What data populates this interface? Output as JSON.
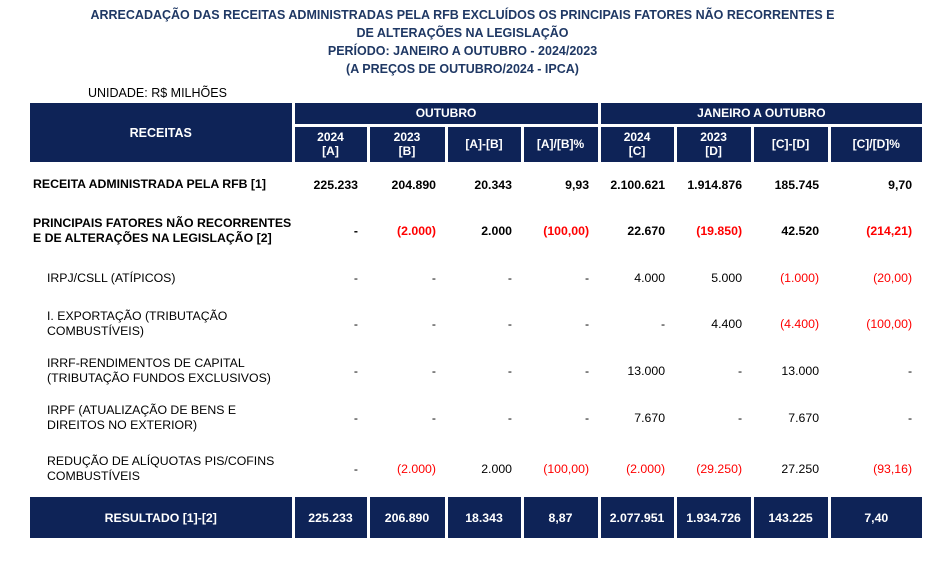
{
  "title": {
    "line1": "ARRECADAÇÃO DAS RECEITAS ADMINISTRADAS PELA RFB EXCLUÍDOS OS PRINCIPAIS FATORES NÃO RECORRENTES E",
    "line2": "DE ALTERAÇÕES NA LEGISLAÇÃO",
    "line3": "PERÍODO: JANEIRO A OUTUBRO - 2024/2023",
    "line4": "(A PREÇOS DE OUTUBRO/2024 - IPCA)"
  },
  "unit_label": "UNIDADE: R$ MILHÕES",
  "colors": {
    "band_navy": "#0E2357",
    "title_navy": "#1F3864",
    "negative_red": "#FF0000"
  },
  "table": {
    "header": {
      "receitas": "RECEITAS",
      "groups": [
        {
          "label": "OUTUBRO"
        },
        {
          "label": "JANEIRO A OUTUBRO"
        }
      ],
      "columns": [
        "2024\n[A]",
        "2023\n[B]",
        "[A]-[B]",
        "[A]/[B]%",
        "2024\n[C]",
        "2023\n[D]",
        "[C]-[D]",
        "[C]/[D]%"
      ]
    },
    "rows": [
      {
        "label": "RECEITA ADMINISTRADA PELA RFB [1]",
        "bold": true,
        "indent": false,
        "values": [
          "225.233",
          "204.890",
          "20.343",
          "9,93",
          "2.100.621",
          "1.914.876",
          "185.745",
          "9,70"
        ]
      },
      {
        "label": "PRINCIPAIS FATORES NÃO RECORRENTES\nE DE ALTERAÇÕES NA LEGISLAÇÃO [2]",
        "bold": true,
        "indent": false,
        "values": [
          "-",
          "(2.000)",
          "2.000",
          "(100,00)",
          "22.670",
          "(19.850)",
          "42.520",
          "(214,21)"
        ]
      },
      {
        "label": "IRPJ/CSLL (ATÍPICOS)",
        "bold": false,
        "indent": true,
        "values": [
          "-",
          "-",
          "-",
          "-",
          "4.000",
          "5.000",
          "(1.000)",
          "(20,00)"
        ]
      },
      {
        "label": "I. EXPORTAÇÃO (TRIBUTAÇÃO\nCOMBUSTÍVEIS)",
        "bold": false,
        "indent": true,
        "values": [
          "-",
          "-",
          "-",
          "-",
          "-",
          "4.400",
          "(4.400)",
          "(100,00)"
        ]
      },
      {
        "label": "IRRF-RENDIMENTOS DE CAPITAL\n(TRIBUTAÇÃO FUNDOS EXCLUSIVOS)",
        "bold": false,
        "indent": true,
        "values": [
          "-",
          "-",
          "-",
          "-",
          "13.000",
          "-",
          "13.000",
          "-"
        ]
      },
      {
        "label": "IRPF (ATUALIZAÇÃO DE BENS E\nDIREITOS NO EXTERIOR)",
        "bold": false,
        "indent": true,
        "values": [
          "-",
          "-",
          "-",
          "-",
          "7.670",
          "-",
          "7.670",
          "-"
        ]
      },
      {
        "label": "REDUÇÃO DE ALÍQUOTAS PIS/COFINS\nCOMBUSTÍVEIS",
        "bold": false,
        "indent": true,
        "values": [
          "-",
          "(2.000)",
          "2.000",
          "(100,00)",
          "(2.000)",
          "(29.250)",
          "27.250",
          "(93,16)"
        ]
      }
    ],
    "footer": {
      "label": "RESULTADO [1]-[2]",
      "values": [
        "225.233",
        "206.890",
        "18.343",
        "8,87",
        "2.077.951",
        "1.934.726",
        "143.225",
        "7,40"
      ]
    }
  }
}
